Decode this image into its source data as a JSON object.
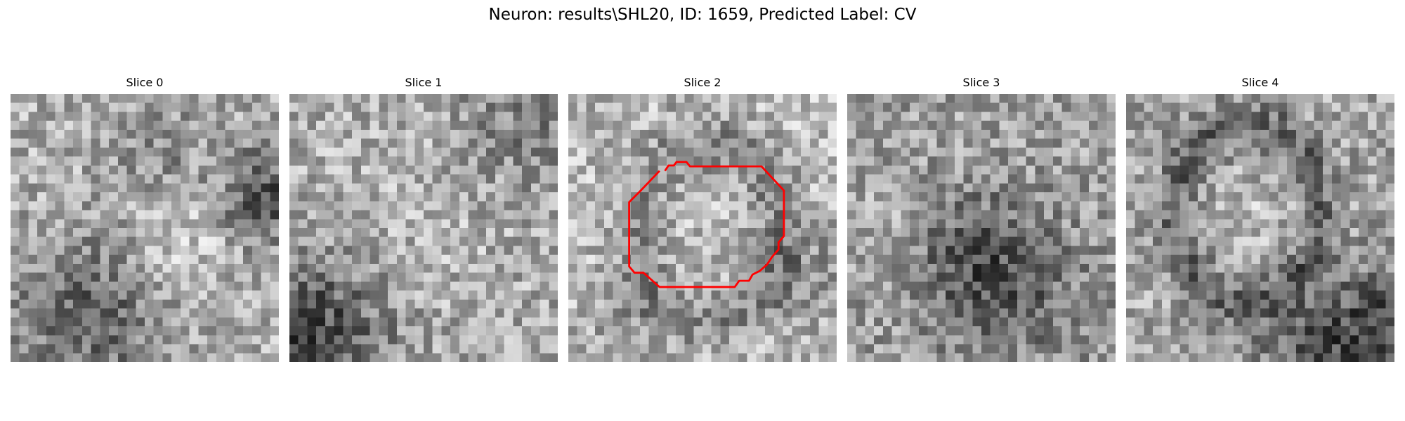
{
  "figure": {
    "title": "Neuron: results\\SHL20, ID: 1659, Predicted Label: CV"
  },
  "panels": [
    {
      "title": "Slice 0"
    },
    {
      "title": "Slice 1"
    },
    {
      "title": "Slice 2",
      "contour_color": "#ff0000"
    },
    {
      "title": "Slice 3"
    },
    {
      "title": "Slice 4"
    }
  ],
  "colors": {
    "background": "#ffffff",
    "contour": "#ff0000",
    "colormap": "grayscale"
  }
}
